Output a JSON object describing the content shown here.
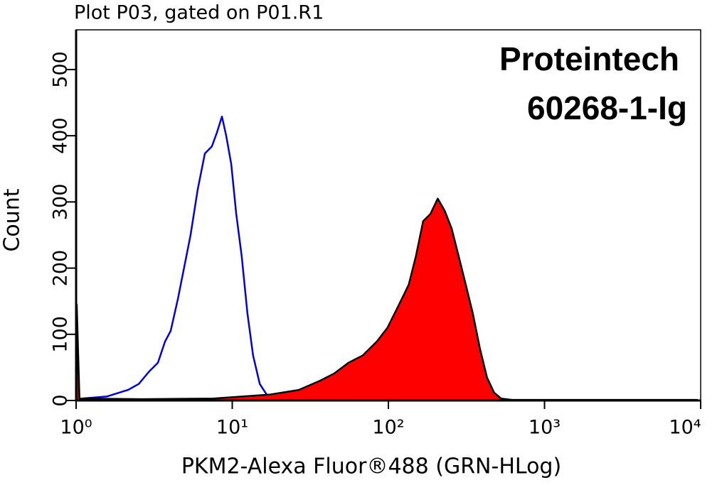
{
  "chart_data": {
    "type": "histogram-overlay",
    "title": "Plot P03, gated on P01.R1",
    "x_label": "PKM2-Alexa Fluor®488 (GRN-HLog)",
    "y_label": "Count",
    "annotations": [
      "Proteintech",
      "60268-1-Ig"
    ],
    "x_log": true,
    "xlim": [
      1,
      10000
    ],
    "xticks": [
      {
        "value": 1,
        "label": "10⁰"
      },
      {
        "value": 10,
        "label": "10¹"
      },
      {
        "value": 100,
        "label": "10²"
      },
      {
        "value": 1000,
        "label": "10³"
      },
      {
        "value": 10000,
        "label": "10⁴"
      }
    ],
    "ylim": [
      0,
      560
    ],
    "yticks": [
      0,
      100,
      200,
      300,
      400,
      500
    ],
    "series": [
      {
        "name": null,
        "color": "#0000e0",
        "filled": false,
        "x": [
          1.09,
          1.57,
          2.15,
          2.52,
          2.94,
          3.34,
          3.71,
          4.03,
          4.48,
          4.98,
          5.41,
          6.01,
          6.68,
          7.41,
          7.98,
          8.59,
          9.15,
          9.85,
          10.6,
          11.5,
          12.5,
          13.6,
          15.0,
          16.6,
          19.5,
          61.7
        ],
        "values": [
          3,
          6,
          16,
          25,
          44,
          57,
          89,
          105,
          153,
          207,
          250,
          319,
          373,
          384,
          405,
          429,
          400,
          357,
          282,
          218,
          132,
          68,
          25,
          9,
          3,
          1
        ]
      },
      {
        "name": null,
        "color": "#ff0000",
        "filled": true,
        "x": [
          1.01,
          1.05,
          2.65,
          7.56,
          17.5,
          26.7,
          36.6,
          45.1,
          55.5,
          68.4,
          84.3,
          98.6,
          116,
          135,
          150,
          167,
          186,
          207,
          229,
          254,
          282,
          313,
          347,
          386,
          428,
          475,
          527,
          620,
          1430,
          9500
        ],
        "values": [
          145,
          3,
          2,
          3,
          9,
          16,
          30,
          41,
          57,
          68,
          89,
          110,
          143,
          175,
          218,
          271,
          282,
          305,
          287,
          260,
          218,
          175,
          132,
          78,
          35,
          12,
          3,
          1,
          1,
          1
        ]
      }
    ]
  }
}
